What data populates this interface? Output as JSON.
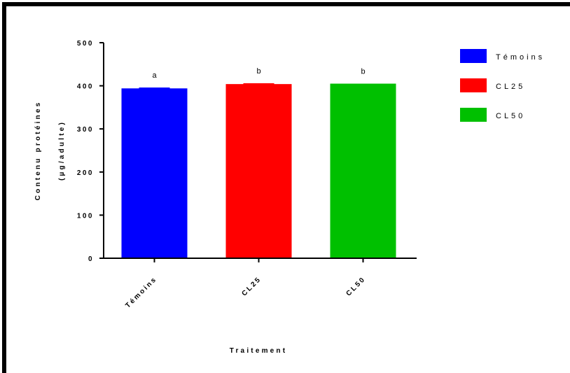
{
  "chart_data": {
    "type": "bar",
    "categories": [
      "Témoins",
      "CL25",
      "CL50"
    ],
    "values": [
      394,
      404,
      405
    ],
    "errors": [
      2,
      2,
      0
    ],
    "annotations": [
      "a",
      "b",
      "b"
    ],
    "colors": [
      "#0000ff",
      "#ff0000",
      "#00c000"
    ],
    "xlabel": "Traitement",
    "ylabel_line1": "Contenu protéines",
    "ylabel_line2": "(µg/adulte)",
    "ylim": [
      0,
      500
    ],
    "yticks": [
      0,
      100,
      200,
      300,
      400,
      500
    ],
    "legend": {
      "position": "right",
      "entries": [
        "Témoins",
        "CL25",
        "CL50"
      ]
    },
    "grid": false
  }
}
